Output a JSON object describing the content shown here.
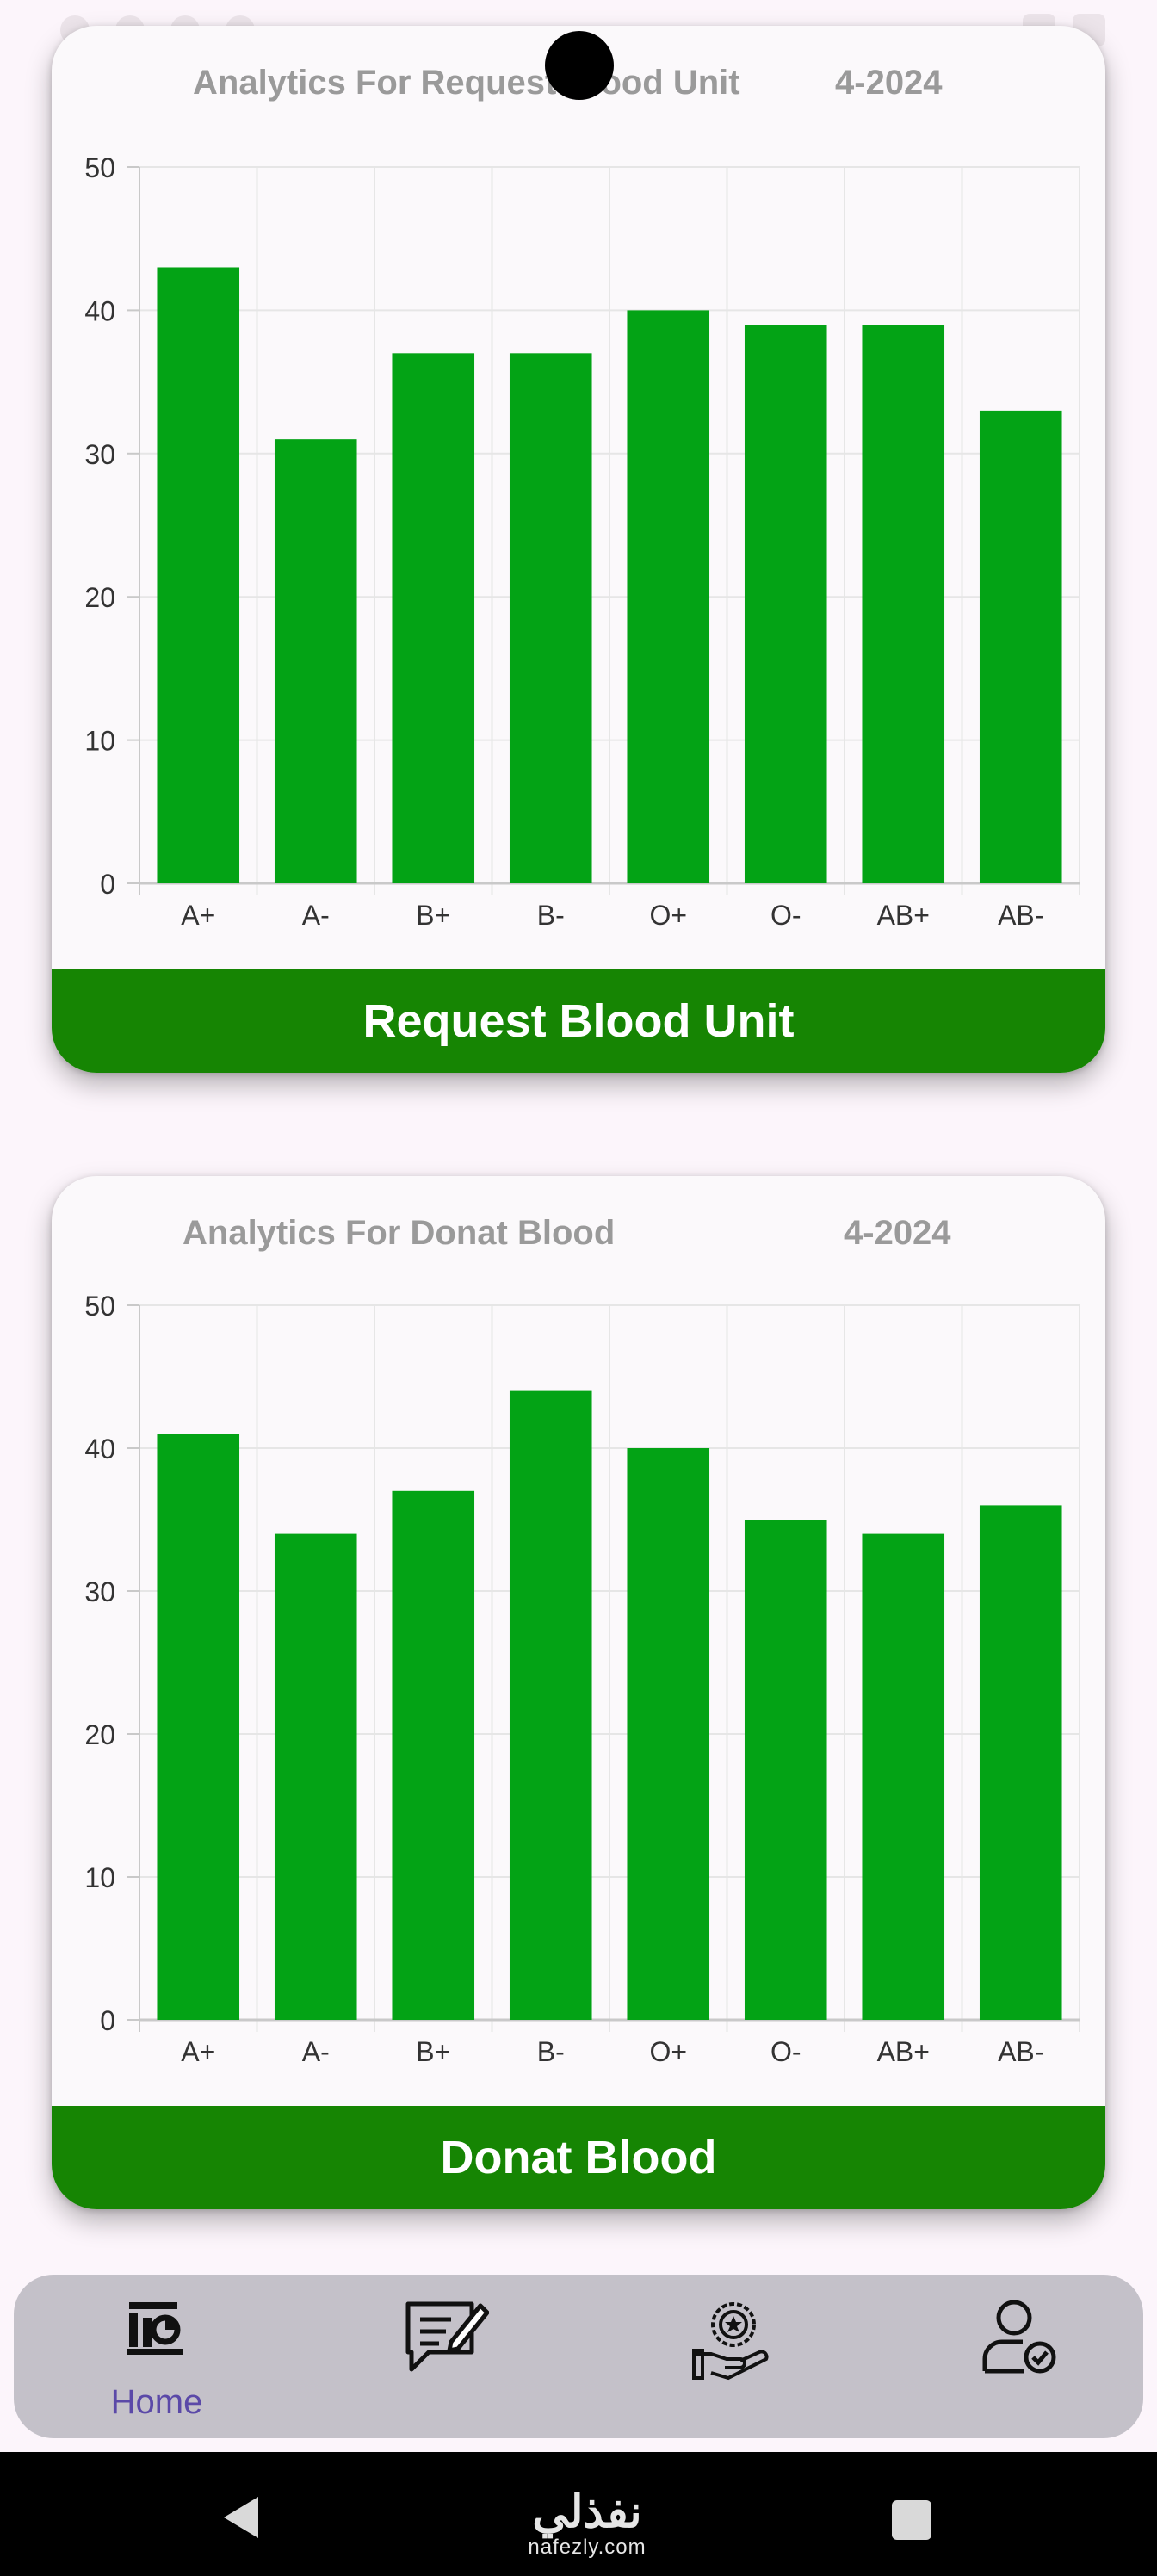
{
  "colors": {
    "bar": "#03a315",
    "action": "#168503",
    "grid": "#e6e6e6",
    "axis": "#c9c9c9",
    "tick_text": "#333333",
    "header_text": "#9a9a9a",
    "nav_active": "#5b49a8"
  },
  "chart_data": [
    {
      "type": "bar",
      "title": "Analytics For Request Blood Unit",
      "date": "4-2024",
      "categories": [
        "A+",
        "A-",
        "B+",
        "B-",
        "O+",
        "O-",
        "AB+",
        "AB-"
      ],
      "values": [
        43,
        31,
        37,
        37,
        40,
        39,
        39,
        33
      ],
      "yticks": [
        "0",
        "10",
        "20",
        "30",
        "40",
        "50"
      ],
      "ylim": [
        0,
        50
      ],
      "grid": true,
      "button_label": "Request Blood Unit"
    },
    {
      "type": "bar",
      "title": "Analytics For Donat Blood",
      "date": "4-2024",
      "categories": [
        "A+",
        "A-",
        "B+",
        "B-",
        "O+",
        "O-",
        "AB+",
        "AB-"
      ],
      "values": [
        41,
        34,
        37,
        44,
        40,
        35,
        34,
        36
      ],
      "yticks": [
        "0",
        "10",
        "20",
        "30",
        "40",
        "50"
      ],
      "ylim": [
        0,
        50
      ],
      "grid": true,
      "button_label": "Donat Blood"
    }
  ],
  "bottom_nav": {
    "items": [
      {
        "icon": "home-chart-icon",
        "label": "Home",
        "active": true
      },
      {
        "icon": "edit-message-icon",
        "label": "",
        "active": false
      },
      {
        "icon": "award-hand-icon",
        "label": "",
        "active": false
      },
      {
        "icon": "user-check-icon",
        "label": "",
        "active": false
      }
    ]
  },
  "system_nav": {
    "watermark_arabic": "نفذلي",
    "watermark_latin": "nafezly.com"
  }
}
